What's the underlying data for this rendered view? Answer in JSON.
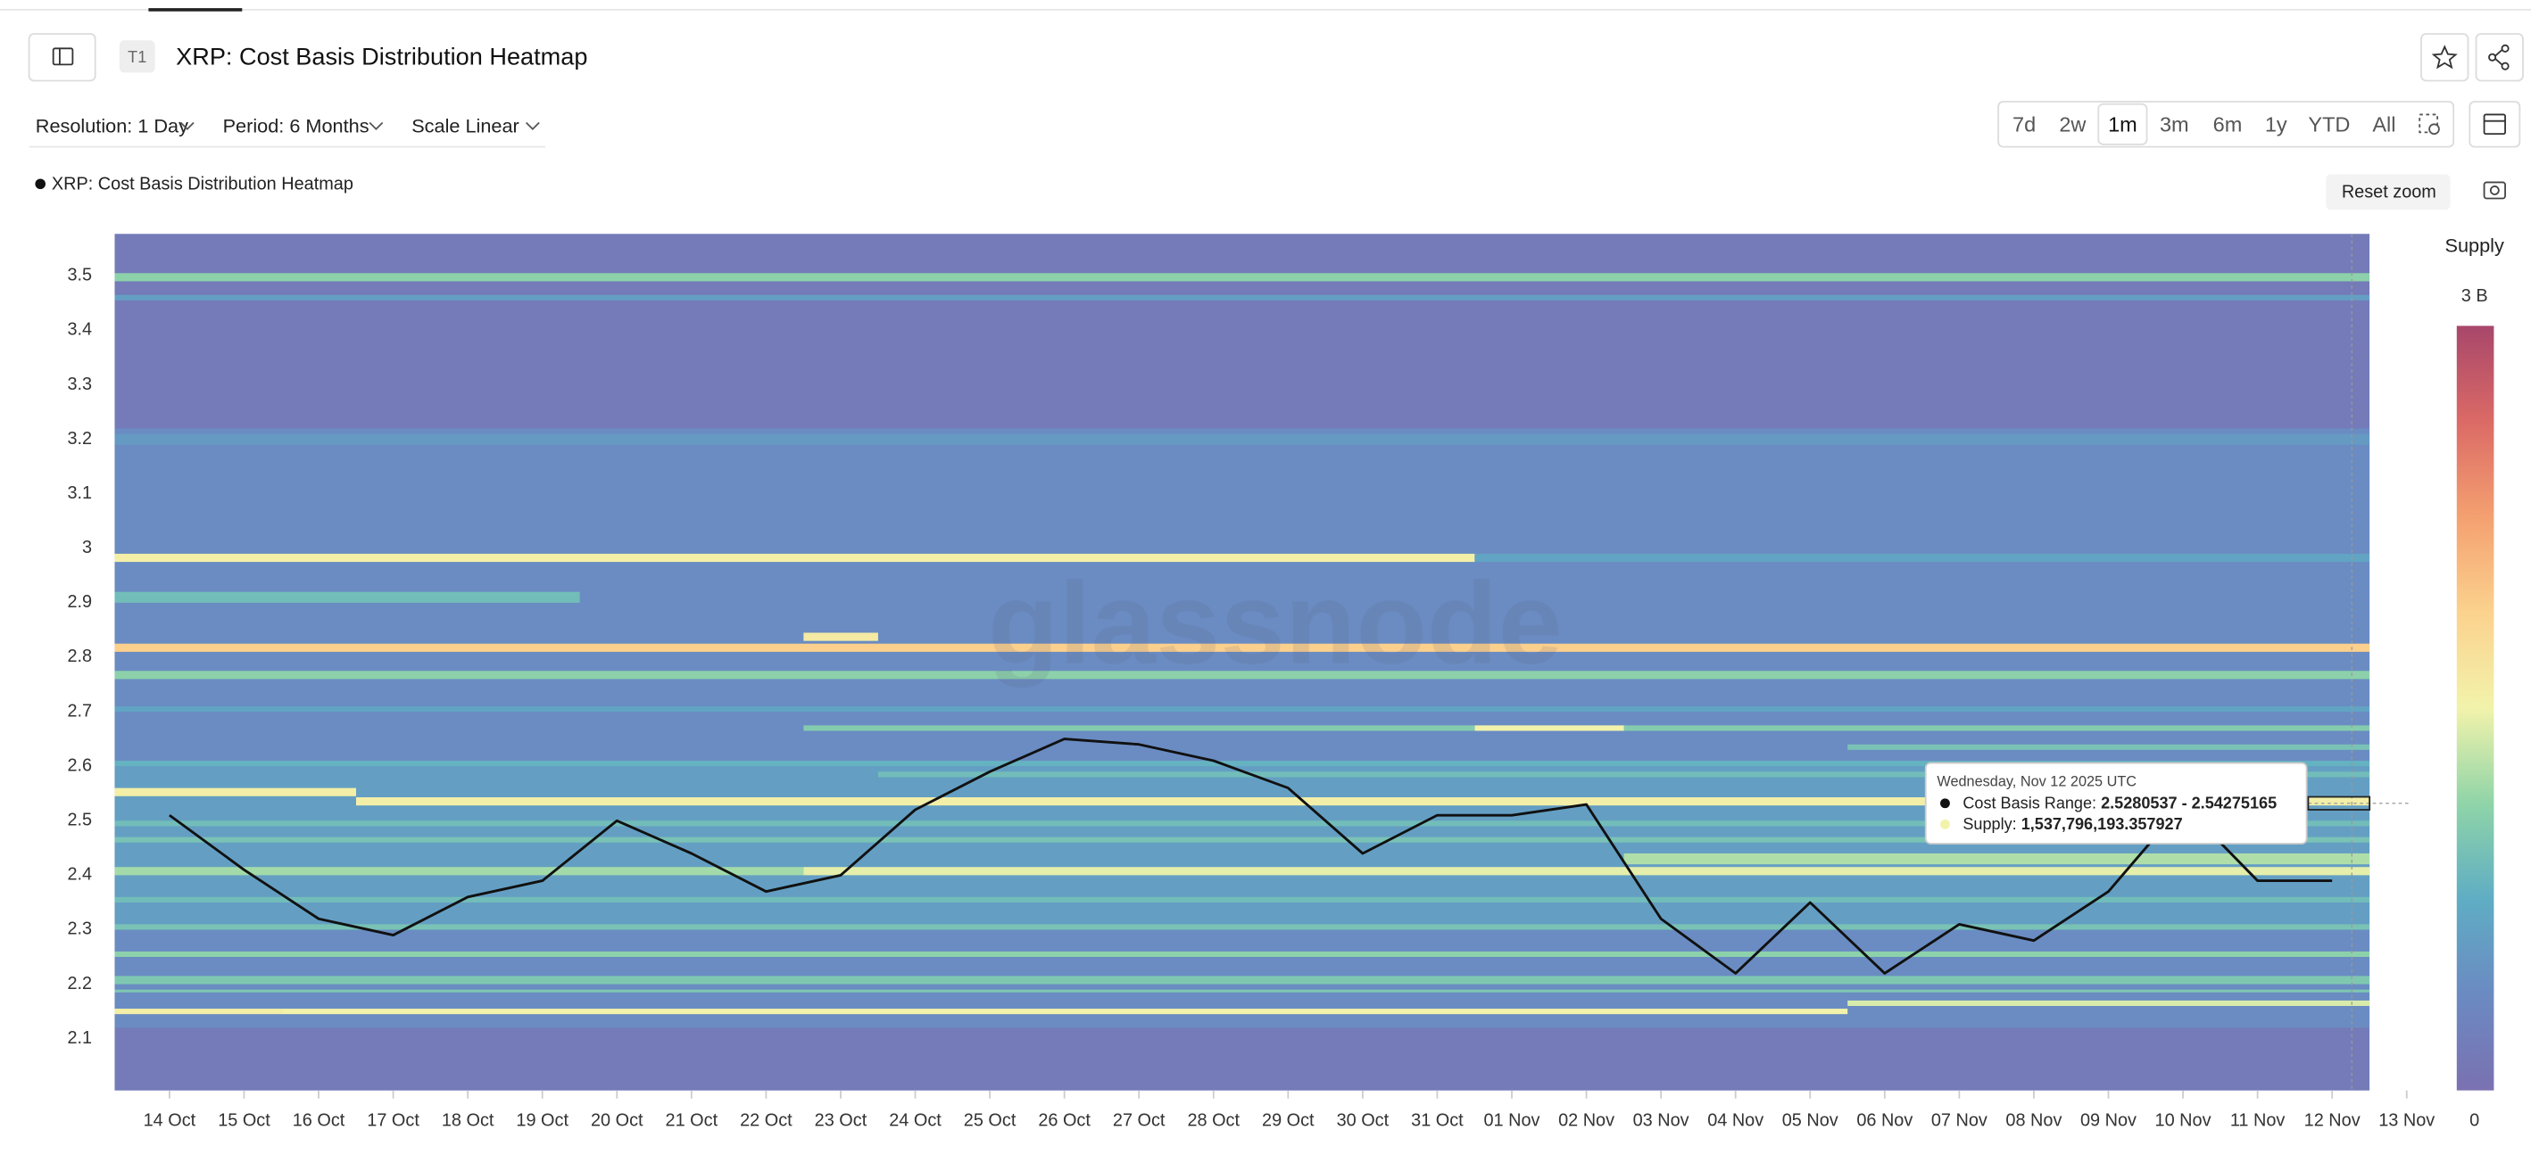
{
  "header": {
    "badge": "T1",
    "title": "XRP: Cost Basis Distribution Heatmap"
  },
  "controls": {
    "resolution": "Resolution: 1 Day",
    "period": "Period: 6 Months",
    "scale": "Scale Linear",
    "ranges": [
      "7d",
      "2w",
      "1m",
      "3m",
      "6m",
      "1y",
      "YTD",
      "All"
    ],
    "active_range": "1m",
    "reset_zoom": "Reset zoom"
  },
  "chart_data": {
    "type": "heatmap",
    "legend": "XRP: Cost Basis Distribution Heatmap",
    "watermark": "glassnode",
    "xticks": [
      "14 Oct",
      "15 Oct",
      "16 Oct",
      "17 Oct",
      "18 Oct",
      "19 Oct",
      "20 Oct",
      "21 Oct",
      "22 Oct",
      "23 Oct",
      "24 Oct",
      "25 Oct",
      "26 Oct",
      "27 Oct",
      "28 Oct",
      "29 Oct",
      "30 Oct",
      "31 Oct",
      "01 Nov",
      "02 Nov",
      "03 Nov",
      "04 Nov",
      "05 Nov",
      "06 Nov",
      "07 Nov",
      "08 Nov",
      "09 Nov",
      "10 Nov",
      "11 Nov",
      "12 Nov",
      "13 Nov"
    ],
    "ylim": [
      2.005,
      3.577
    ],
    "yticks": [
      2.1,
      2.2,
      2.3,
      2.4,
      2.5,
      2.6,
      2.7,
      2.8,
      2.9,
      3,
      3.1,
      3.2,
      3.3,
      3.4,
      3.5
    ],
    "colorbar": {
      "title": "Supply",
      "ticks": [
        0,
        {
          "value": 3000000000,
          "label": "3 B"
        }
      ]
    },
    "colormap": [
      "#7a71b1",
      "#6b8ac2",
      "#5fadc4",
      "#8fd4a8",
      "#f2f3ab",
      "#fbd28e",
      "#f4a070",
      "#db6a66",
      "#a8476b"
    ],
    "bands": [
      {
        "low": 2.0,
        "high": 3.6,
        "from": null,
        "to": null,
        "supply": 150000000
      },
      {
        "low": 2.12,
        "high": 3.22,
        "from": null,
        "to": null,
        "supply": 400000000
      },
      {
        "low": 2.3,
        "high": 2.6,
        "from": null,
        "to": null,
        "supply": 600000000
      },
      {
        "low": 3.49,
        "high": 3.505,
        "from": null,
        "to": null,
        "supply": 1100000000
      },
      {
        "low": 3.455,
        "high": 3.465,
        "from": null,
        "to": null,
        "supply": 600000000
      },
      {
        "low": 3.19,
        "high": 3.21,
        "from": null,
        "to": null,
        "supply": 550000000
      },
      {
        "low": 2.975,
        "high": 2.99,
        "from": null,
        "to": "01 Nov",
        "supply": 1550000000
      },
      {
        "low": 2.975,
        "high": 2.99,
        "from": "01 Nov",
        "to": null,
        "supply": 650000000
      },
      {
        "low": 2.81,
        "high": 2.825,
        "from": null,
        "to": null,
        "supply": 1900000000
      },
      {
        "low": 2.83,
        "high": 2.845,
        "from": "23 Oct",
        "to": "24 Oct",
        "supply": 1600000000
      },
      {
        "low": 2.76,
        "high": 2.775,
        "from": null,
        "to": null,
        "supply": 1100000000
      },
      {
        "low": 2.9,
        "high": 2.92,
        "from": null,
        "to": "20 Oct",
        "supply": 900000000
      },
      {
        "low": 2.665,
        "high": 2.675,
        "from": "01 Nov",
        "to": "03 Nov",
        "supply": 1500000000
      },
      {
        "low": 2.665,
        "high": 2.675,
        "from": "23 Oct",
        "to": "01 Nov",
        "supply": 1050000000
      },
      {
        "low": 2.665,
        "high": 2.675,
        "from": "03 Nov",
        "to": null,
        "supply": 1050000000
      },
      {
        "low": 2.545,
        "high": 2.56,
        "from": null,
        "to": "17 Oct",
        "supply": 1550000000
      },
      {
        "low": 2.528,
        "high": 2.543,
        "from": "17 Oct",
        "to": null,
        "supply": 1540000000
      },
      {
        "low": 2.4,
        "high": 2.415,
        "from": null,
        "to": "23 Oct",
        "supply": 1200000000
      },
      {
        "low": 2.4,
        "high": 2.415,
        "from": "23 Oct",
        "to": null,
        "supply": 1450000000
      },
      {
        "low": 2.42,
        "high": 2.44,
        "from": "03 Nov",
        "to": null,
        "supply": 1250000000
      },
      {
        "low": 2.145,
        "high": 2.155,
        "from": null,
        "to": "16 Oct",
        "supply": 1550000000
      },
      {
        "low": 2.145,
        "high": 2.155,
        "from": "16 Oct",
        "to": "06 Nov",
        "supply": 1500000000
      },
      {
        "low": 2.16,
        "high": 2.17,
        "from": "06 Nov",
        "to": null,
        "supply": 1400000000
      },
      {
        "low": 2.2,
        "high": 2.215,
        "from": null,
        "to": null,
        "supply": 1000000000
      },
      {
        "low": 2.25,
        "high": 2.26,
        "from": null,
        "to": null,
        "supply": 1100000000
      },
      {
        "low": 2.3,
        "high": 2.31,
        "from": null,
        "to": null,
        "supply": 950000000
      },
      {
        "low": 2.35,
        "high": 2.36,
        "from": null,
        "to": null,
        "supply": 900000000
      },
      {
        "low": 2.46,
        "high": 2.47,
        "from": null,
        "to": null,
        "supply": 950000000
      },
      {
        "low": 2.49,
        "high": 2.5,
        "from": null,
        "to": null,
        "supply": 900000000
      },
      {
        "low": 2.6,
        "high": 2.61,
        "from": null,
        "to": null,
        "supply": 800000000
      },
      {
        "low": 2.7,
        "high": 2.71,
        "from": null,
        "to": null,
        "supply": 650000000
      },
      {
        "low": 2.185,
        "high": 2.19,
        "from": null,
        "to": null,
        "supply": 1000000000
      },
      {
        "low": 2.58,
        "high": 2.59,
        "from": "24 Oct",
        "to": null,
        "supply": 900000000
      },
      {
        "low": 2.63,
        "high": 2.64,
        "from": "06 Nov",
        "to": null,
        "supply": 950000000
      }
    ],
    "line": {
      "color": "#111111",
      "x": [
        "14 Oct",
        "15 Oct",
        "16 Oct",
        "17 Oct",
        "18 Oct",
        "19 Oct",
        "20 Oct",
        "21 Oct",
        "22 Oct",
        "23 Oct",
        "24 Oct",
        "25 Oct",
        "26 Oct",
        "27 Oct",
        "28 Oct",
        "29 Oct",
        "30 Oct",
        "31 Oct",
        "01 Nov",
        "02 Nov",
        "03 Nov",
        "04 Nov",
        "05 Nov",
        "06 Nov",
        "07 Nov",
        "08 Nov",
        "09 Nov",
        "10 Nov",
        "11 Nov",
        "12 Nov"
      ],
      "values": [
        2.51,
        2.41,
        2.32,
        2.29,
        2.36,
        2.39,
        2.5,
        2.44,
        2.37,
        2.4,
        2.52,
        2.59,
        2.65,
        2.64,
        2.61,
        2.56,
        2.44,
        2.51,
        2.51,
        2.53,
        2.32,
        2.22,
        2.35,
        2.22,
        2.31,
        2.28,
        2.37,
        2.53,
        2.39,
        2.39
      ]
    },
    "tooltip": {
      "date": "Wednesday, Nov 12 2025 UTC",
      "range_label": "Cost Basis Range:",
      "range": "2.5280537 - 2.54275165",
      "supply_label": "Supply:",
      "supply": "1,537,796,193.357927"
    }
  }
}
